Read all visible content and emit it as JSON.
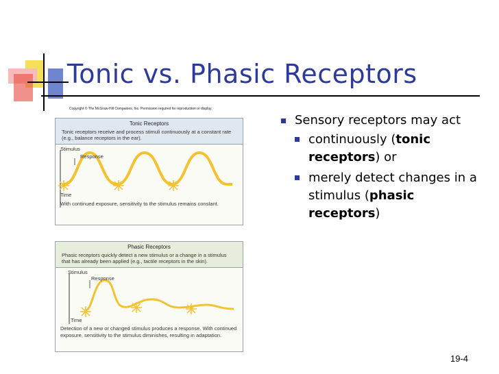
{
  "slide": {
    "title": "Tonic vs. Phasic Receptors",
    "copyright": "Copyright © The McGraw-Hill Companies, Inc. Permission required for reproduction or display.",
    "slide_number": "19-4"
  },
  "tonic_panel": {
    "title": "Tonic Receptors",
    "description": "Tonic receptors receive and process stimuli continuously at a constant rate (e.g., balance receptors in the ear).",
    "stimulus_label": "Stimulus",
    "response_label": "Response",
    "time_label": "Time",
    "caption": "With continued exposure, sensitivity to the stimulus remains constant."
  },
  "phasic_panel": {
    "title": "Phasic Receptors",
    "description": "Phasic receptors quickly detect a new stimulus or a change in a stimulus that has already been applied (e.g., tactile receptors in the skin).",
    "stimulus_label": "Stimulus",
    "response_label": "Response",
    "time_label": "Time",
    "caption": "Detection of a new or changed stimulus produces a response. With continued exposure, sensitivity to the stimulus diminishes, resulting in adaptation."
  },
  "bullets": {
    "main": "Sensory receptors may act",
    "sub1_pre": "continuously (",
    "sub1_bold": "tonic receptors",
    "sub1_post": ") or",
    "sub2_pre": "merely detect changes in a stimulus (",
    "sub2_bold": "phasic receptors",
    "sub2_post": ")"
  },
  "colors": {
    "title": "#2d3a9a",
    "bullet": "#2d3a9a",
    "wave": "#f2c230",
    "deco_yellow": "#f6e05a",
    "deco_red": "#e8493f",
    "deco_blue": "#5f78c8"
  }
}
